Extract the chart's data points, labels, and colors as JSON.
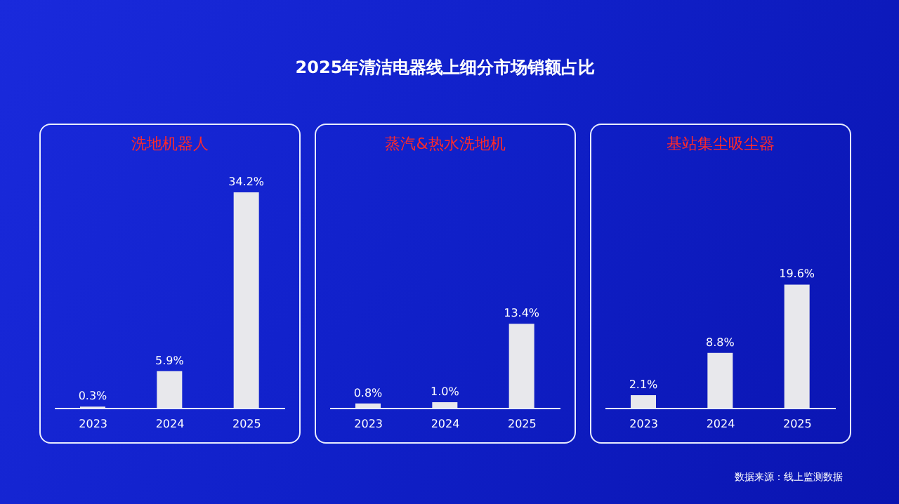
{
  "chart_data": [
    {
      "type": "bar",
      "subtitle": "洗地机器人",
      "categories": [
        "2023",
        "2024",
        "2025"
      ],
      "values": [
        0.3,
        5.9,
        34.2
      ],
      "value_labels": [
        "0.3%",
        "5.9%",
        "34.2%"
      ],
      "color": "#e8e8ec",
      "tick_labels": "x",
      "grid": false,
      "legend": false
    },
    {
      "type": "bar",
      "title": "2025年清洁电器线上细分市场销额占比",
      "subtitle": "蒸汽&热水洗地机",
      "categories": [
        "2023",
        "2024",
        "2025"
      ],
      "values": [
        0.8,
        1.0,
        13.4
      ],
      "value_labels": [
        "0.8%",
        "1.0%",
        "13.4%"
      ],
      "color": "#e8e8ec",
      "tick_labels": "x",
      "grid": false,
      "legend": false
    },
    {
      "type": "bar",
      "subtitle": "基站集尘吸尘器",
      "categories": [
        "2023",
        "2024",
        "2025"
      ],
      "values": [
        2.1,
        8.8,
        19.6
      ],
      "value_labels": [
        "2.1%",
        "8.8%",
        "19.6%"
      ],
      "color": "#e8e8ec",
      "tick_labels": "x",
      "grid": false,
      "legend": false,
      "annotations": [
        "数据来源：线上监测数据"
      ]
    }
  ]
}
